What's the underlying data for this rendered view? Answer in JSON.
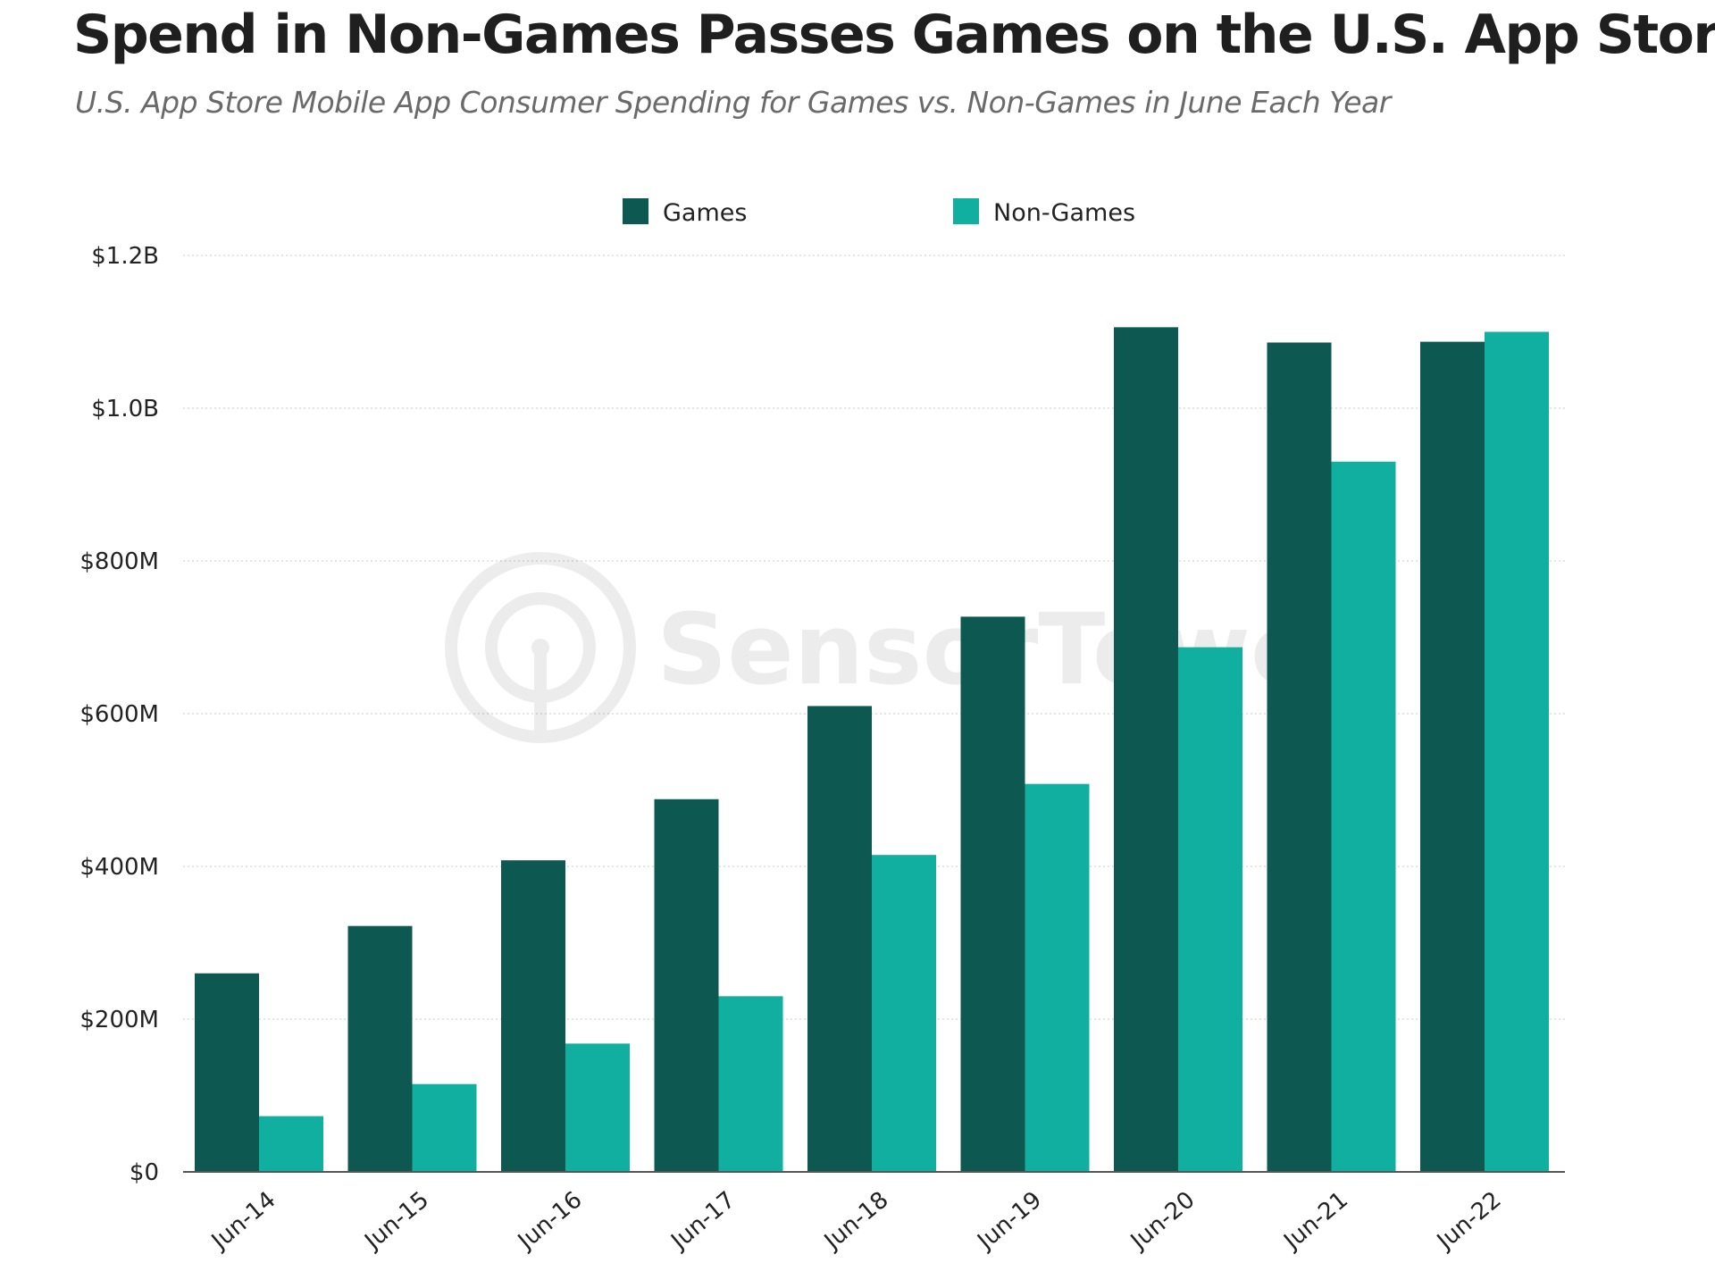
{
  "header": {
    "title": "Spend in Non-Games Passes Games on the U.S. App Store",
    "subtitle": "U.S. App Store Mobile App Consumer Spending for Games vs. Non-Games in June Each Year"
  },
  "watermark": {
    "text": "SensorTower",
    "icon": "sensor-tower-logo-icon"
  },
  "colors": {
    "games": "#0d5850",
    "non_games": "#10afa0",
    "grid": "#dcdcdc",
    "axis": "#555555"
  },
  "chart_data": {
    "type": "bar",
    "categories": [
      "Jun-14",
      "Jun-15",
      "Jun-16",
      "Jun-17",
      "Jun-18",
      "Jun-19",
      "Jun-20",
      "Jun-21",
      "Jun-22"
    ],
    "series": [
      {
        "name": "Games",
        "values": [
          260,
          322,
          408,
          488,
          610,
          727,
          1106,
          1086,
          1087
        ]
      },
      {
        "name": "Non-Games",
        "values": [
          73,
          115,
          168,
          230,
          415,
          508,
          687,
          930,
          1100
        ]
      }
    ],
    "yticks": [
      {
        "value": 0,
        "label": "$0"
      },
      {
        "value": 200,
        "label": "$200M"
      },
      {
        "value": 400,
        "label": "$400M"
      },
      {
        "value": 600,
        "label": "$600M"
      },
      {
        "value": 800,
        "label": "$800M"
      },
      {
        "value": 1000,
        "label": "$1.0B"
      },
      {
        "value": 1200,
        "label": "$1.2B"
      }
    ],
    "ylim": [
      0,
      1200
    ],
    "y_unit": "USD millions",
    "grid": true,
    "legend_position": "top-center"
  }
}
